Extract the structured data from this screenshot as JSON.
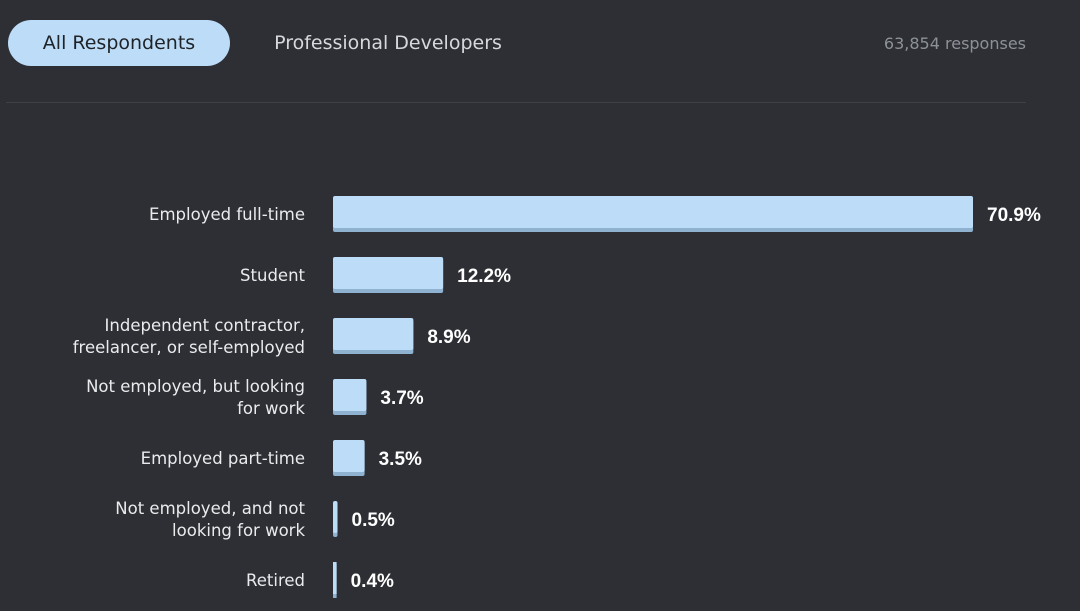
{
  "tabs": [
    {
      "label": "All Respondents",
      "active": true
    },
    {
      "label": "Professional Developers",
      "active": false
    }
  ],
  "responses_count": "63,854 responses",
  "colors": {
    "background": "#2d2f34",
    "bar": "#bcdcf7",
    "bar_shadow": "#8eb2d0",
    "active_tab": "#bcdcf7"
  },
  "chart_data": {
    "type": "bar",
    "orientation": "horizontal",
    "categories": [
      [
        "Employed full-time"
      ],
      [
        "Student"
      ],
      [
        "Independent contractor,",
        "freelancer, or self-employed"
      ],
      [
        "Not employed, but looking",
        "for work"
      ],
      [
        "Employed part-time"
      ],
      [
        "Not employed, and not",
        "looking for work"
      ],
      [
        "Retired"
      ]
    ],
    "values": [
      70.9,
      12.2,
      8.9,
      3.7,
      3.5,
      0.5,
      0.4
    ],
    "value_labels": [
      "70.9%",
      "12.2%",
      "8.9%",
      "3.7%",
      "3.5%",
      "0.5%",
      "0.4%"
    ],
    "unit": "%",
    "xlim": [
      0,
      70.9
    ],
    "grid": false,
    "legend": "none"
  }
}
